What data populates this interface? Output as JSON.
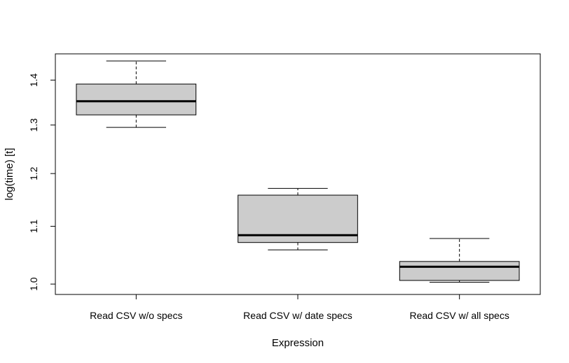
{
  "chart_data": {
    "type": "boxplot",
    "title": "",
    "xlabel": "Expression",
    "ylabel": "log(time) [t]",
    "y_scale": "log",
    "ylim": [
      0.983,
      1.462
    ],
    "y_ticks": [
      1.0,
      1.1,
      1.2,
      1.3,
      1.4
    ],
    "y_tick_labels": [
      "1.0",
      "1.1",
      "1.2",
      "1.3",
      "1.4"
    ],
    "categories": [
      "Read CSV w/o specs",
      "Read CSV w/ date specs",
      "Read CSV w/ all specs"
    ],
    "boxes": [
      {
        "category": "Read CSV w/o specs",
        "min": 1.295,
        "q1": 1.322,
        "median": 1.352,
        "q3": 1.391,
        "max": 1.445
      },
      {
        "category": "Read CSV w/ date specs",
        "min": 1.058,
        "q1": 1.071,
        "median": 1.084,
        "q3": 1.158,
        "max": 1.171
      },
      {
        "category": "Read CSV w/ all specs",
        "min": 1.003,
        "q1": 1.006,
        "median": 1.029,
        "q3": 1.038,
        "max": 1.078
      }
    ],
    "box_fill": "#cccccc",
    "grid": false,
    "legend": "none"
  }
}
